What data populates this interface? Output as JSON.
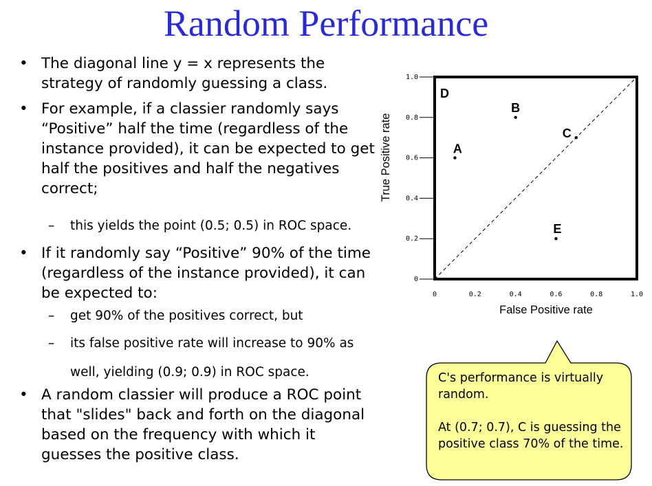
{
  "slide": {
    "title": "Random Performance",
    "bullets": [
      {
        "type": "bullet",
        "text": "The diagonal line y = x represents the strategy of randomly guessing a class."
      },
      {
        "type": "bullet",
        "text": "For example, if a classier randomly says “Positive” half the time (regardless of the instance provided), it can be expected to get half the positives and half the negatives correct;"
      },
      {
        "type": "sub",
        "text": "this yields the point (0.5; 0.5) in ROC space."
      },
      {
        "type": "bullet",
        "text": "If it randomly say “Positive” 90% of the time (regardless of the instance provided), it can be expected to:"
      },
      {
        "type": "sub",
        "text": "get 90% of the positives correct, but"
      },
      {
        "type": "sub",
        "text": "its false positive rate will increase to 90% as well, yielding (0.9; 0.9) in ROC space."
      },
      {
        "type": "bullet",
        "text": "A random classier will produce a ROC point that \"slides\" back and forth on the diagonal based on the frequency with which it guesses the positive class."
      }
    ],
    "bullet_glyph": "•",
    "sub_glyph": "–"
  },
  "callout": {
    "line1": "C's performance is virtually random.",
    "line2": "At (0.7; 0.7), C is guessing the positive class 70% of the time.",
    "fill": "#ffff99"
  },
  "chart_data": {
    "type": "scatter",
    "xlabel": "False Positive rate",
    "ylabel": "True Positive rate",
    "xlim": [
      0,
      1
    ],
    "ylim": [
      0,
      1
    ],
    "x_ticks": [
      "0",
      "0.2",
      "0.4",
      "0.6",
      "0.8",
      "1.0"
    ],
    "y_ticks": [
      "0",
      "0.2",
      "0.4",
      "0.6",
      "0.8",
      "1.0"
    ],
    "grid": false,
    "diagonal": {
      "from": [
        0,
        0
      ],
      "to": [
        1,
        1
      ],
      "style": "dashed"
    },
    "points": [
      {
        "label": "D",
        "x": 0.0,
        "y": 1.0
      },
      {
        "label": "B",
        "x": 0.4,
        "y": 0.8
      },
      {
        "label": "C",
        "x": 0.7,
        "y": 0.7
      },
      {
        "label": "A",
        "x": 0.1,
        "y": 0.6
      },
      {
        "label": "E",
        "x": 0.6,
        "y": 0.2
      }
    ]
  }
}
